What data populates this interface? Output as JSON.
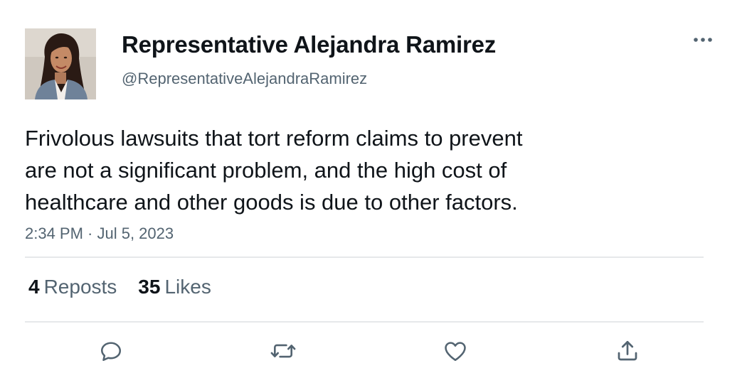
{
  "author": {
    "display_name": "Representative Alejandra Ramirez",
    "handle": "@RepresentativeAlejandraRamirez",
    "avatar": "profile-photo"
  },
  "tweet": {
    "lines": [
      "Frivolous lawsuits that tort reform claims to prevent",
      "are not a significant problem, and the high cost of",
      "healthcare and other goods is due to other factors."
    ],
    "timestamp": "2:34 PM · Jul 5, 2023"
  },
  "stats": {
    "reposts_count": "4",
    "reposts_label": "Reposts",
    "likes_count": "35",
    "likes_label": "Likes"
  },
  "icons": {
    "more": "more-horizontal-icon",
    "reply": "reply-icon",
    "repost": "repost-icon",
    "like": "heart-icon",
    "share": "share-icon"
  },
  "colors": {
    "text": "#0f1419",
    "secondary": "#536471",
    "divider": "#e6e8ea"
  }
}
